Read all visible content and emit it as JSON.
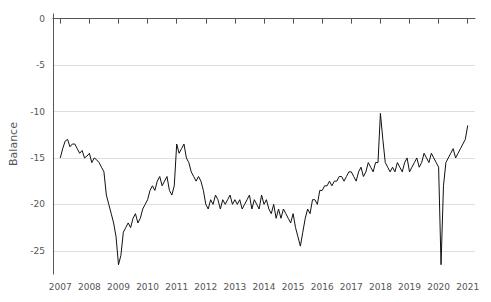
{
  "chart_data": {
    "type": "line",
    "ylabel": "Balance",
    "color": "#111111",
    "grid": true,
    "xlim": [
      2006.75,
      2021.25
    ],
    "ylim": [
      -27.5,
      0.5
    ],
    "xticks": [
      2007,
      2008,
      2009,
      2010,
      2011,
      2012,
      2013,
      2014,
      2015,
      2016,
      2017,
      2018,
      2019,
      2020,
      2021
    ],
    "yticks": [
      0,
      -5,
      -10,
      -15,
      -20,
      -25
    ],
    "x": [
      2007.0,
      2007.083,
      2007.167,
      2007.25,
      2007.333,
      2007.417,
      2007.5,
      2007.583,
      2007.667,
      2007.75,
      2007.833,
      2007.917,
      2008.0,
      2008.083,
      2008.167,
      2008.25,
      2008.333,
      2008.417,
      2008.5,
      2008.583,
      2008.667,
      2008.75,
      2008.833,
      2008.917,
      2009.0,
      2009.083,
      2009.167,
      2009.25,
      2009.333,
      2009.417,
      2009.5,
      2009.583,
      2009.667,
      2009.75,
      2009.833,
      2009.917,
      2010.0,
      2010.083,
      2010.167,
      2010.25,
      2010.333,
      2010.417,
      2010.5,
      2010.583,
      2010.667,
      2010.75,
      2010.833,
      2010.917,
      2011.0,
      2011.083,
      2011.167,
      2011.25,
      2011.333,
      2011.417,
      2011.5,
      2011.583,
      2011.667,
      2011.75,
      2011.833,
      2011.917,
      2012.0,
      2012.083,
      2012.167,
      2012.25,
      2012.333,
      2012.417,
      2012.5,
      2012.583,
      2012.667,
      2012.75,
      2012.833,
      2012.917,
      2013.0,
      2013.083,
      2013.167,
      2013.25,
      2013.333,
      2013.417,
      2013.5,
      2013.583,
      2013.667,
      2013.75,
      2013.833,
      2013.917,
      2014.0,
      2014.083,
      2014.167,
      2014.25,
      2014.333,
      2014.417,
      2014.5,
      2014.583,
      2014.667,
      2014.75,
      2014.833,
      2014.917,
      2015.0,
      2015.083,
      2015.167,
      2015.25,
      2015.333,
      2015.417,
      2015.5,
      2015.583,
      2015.667,
      2015.75,
      2015.833,
      2015.917,
      2016.0,
      2016.083,
      2016.167,
      2016.25,
      2016.333,
      2016.417,
      2016.5,
      2016.583,
      2016.667,
      2016.75,
      2016.833,
      2016.917,
      2017.0,
      2017.083,
      2017.167,
      2017.25,
      2017.333,
      2017.417,
      2017.5,
      2017.583,
      2017.667,
      2017.75,
      2017.833,
      2017.917,
      2018.0,
      2018.083,
      2018.167,
      2018.25,
      2018.333,
      2018.417,
      2018.5,
      2018.583,
      2018.667,
      2018.75,
      2018.833,
      2018.917,
      2019.0,
      2019.083,
      2019.167,
      2019.25,
      2019.333,
      2019.417,
      2019.5,
      2019.583,
      2019.667,
      2019.75,
      2019.833,
      2019.917,
      2020.0,
      2020.083,
      2020.167,
      2020.25,
      2020.333,
      2020.417,
      2020.5,
      2020.583,
      2020.667,
      2020.75,
      2020.833,
      2020.917,
      2021.0
    ],
    "values": [
      -15.0,
      -14.0,
      -13.2,
      -13.0,
      -13.8,
      -13.5,
      -13.5,
      -14.0,
      -14.5,
      -14.2,
      -15.0,
      -14.8,
      -14.5,
      -15.5,
      -15.0,
      -15.2,
      -15.5,
      -16.0,
      -16.5,
      -19.0,
      -20.0,
      -21.0,
      -22.0,
      -23.5,
      -26.5,
      -25.5,
      -23.0,
      -22.5,
      -22.0,
      -22.5,
      -21.5,
      -21.0,
      -22.0,
      -21.5,
      -20.5,
      -20.0,
      -19.5,
      -18.5,
      -18.0,
      -18.5,
      -17.5,
      -17.0,
      -18.0,
      -17.5,
      -17.0,
      -18.5,
      -19.0,
      -18.0,
      -13.5,
      -14.5,
      -14.0,
      -13.5,
      -15.0,
      -15.5,
      -16.5,
      -17.0,
      -17.5,
      -17.0,
      -17.5,
      -18.5,
      -20.0,
      -20.5,
      -19.5,
      -20.0,
      -19.0,
      -19.5,
      -20.5,
      -19.5,
      -20.0,
      -19.5,
      -19.0,
      -20.0,
      -19.5,
      -20.0,
      -19.5,
      -20.5,
      -20.0,
      -19.5,
      -19.0,
      -20.5,
      -19.5,
      -20.0,
      -20.5,
      -19.0,
      -20.0,
      -19.5,
      -20.5,
      -21.0,
      -20.0,
      -21.5,
      -20.5,
      -21.5,
      -20.5,
      -21.0,
      -21.5,
      -22.0,
      -21.0,
      -22.5,
      -23.5,
      -24.5,
      -23.0,
      -21.5,
      -20.5,
      -21.0,
      -19.5,
      -19.5,
      -20.0,
      -18.5,
      -18.5,
      -18.0,
      -18.0,
      -17.5,
      -18.0,
      -17.5,
      -17.5,
      -17.0,
      -17.0,
      -17.5,
      -17.0,
      -16.5,
      -16.5,
      -17.0,
      -17.5,
      -16.5,
      -16.0,
      -17.0,
      -16.5,
      -15.5,
      -16.0,
      -16.5,
      -15.5,
      -15.5,
      -10.2,
      -13.0,
      -15.5,
      -16.0,
      -16.5,
      -16.0,
      -16.5,
      -15.5,
      -16.0,
      -16.5,
      -15.5,
      -15.0,
      -16.5,
      -16.0,
      -15.5,
      -15.0,
      -16.0,
      -15.5,
      -14.5,
      -15.0,
      -15.5,
      -14.5,
      -15.0,
      -15.5,
      -16.0,
      -26.5,
      -18.0,
      -15.5,
      -15.0,
      -14.5,
      -14.0,
      -15.0,
      -14.5,
      -14.0,
      -13.5,
      -13.0,
      -11.5
    ]
  }
}
